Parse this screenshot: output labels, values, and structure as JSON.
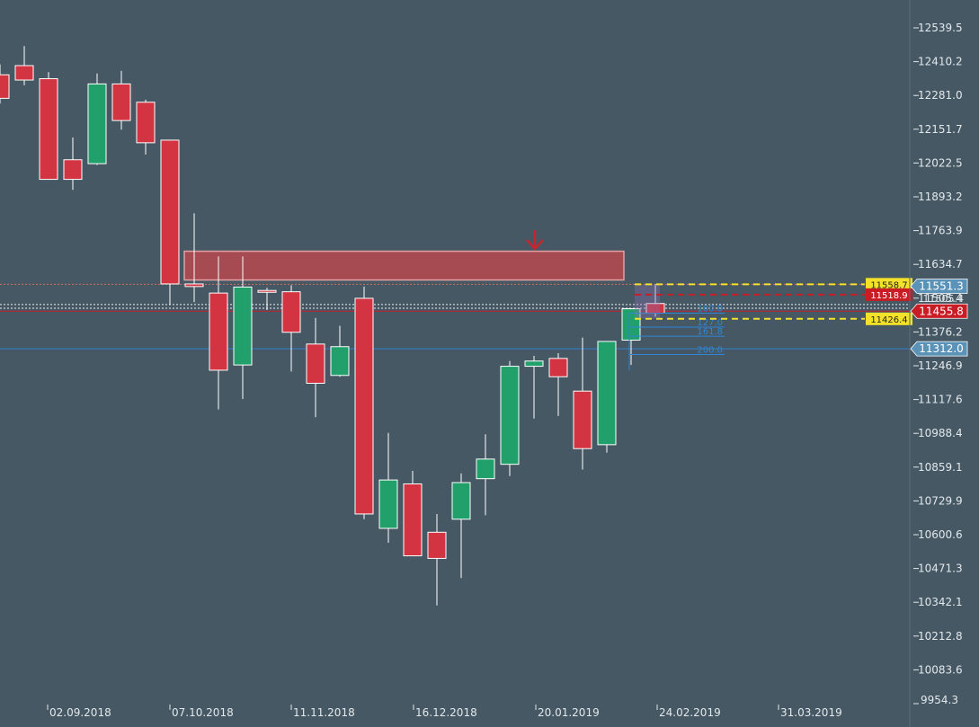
{
  "chart_data": {
    "type": "candlestick",
    "period": "weekly",
    "y_axis": {
      "position": "right",
      "min": 9954.3,
      "max": 12600,
      "tick_labels": [
        "12539.5",
        "12410.2",
        "12281.0",
        "12151.7",
        "12022.5",
        "11893.2",
        "11763.9",
        "11634.7",
        "11505.4",
        "11376.2",
        "11246.9",
        "11117.6",
        "10988.4",
        "10859.1",
        "10729.9",
        "10600.6",
        "10471.3",
        "10342.1",
        "10212.8",
        "10083.6",
        "9954.3"
      ]
    },
    "x_axis": {
      "tick_labels": [
        "02.09.2018",
        "07.10.2018",
        "11.11.2018",
        "16.12.2018",
        "20.01.2019",
        "24.02.2019",
        "31.03.2019"
      ]
    },
    "colors": {
      "background": "#465864",
      "up": "#22a06b",
      "down": "#d23441",
      "wick": "#ffffff",
      "zone_fill": "#b04a4f",
      "zone_border": "#e0a0a4",
      "price_badge": "#c81d25",
      "blue_badge": "#5b93b8",
      "yellow": "#f4e22a",
      "fib": "#2f86d6",
      "axis_text": "#e2e8ec",
      "arrow": "#c5262f"
    },
    "candles": [
      {
        "o": 12360,
        "c": 12270,
        "h": 12400,
        "l": 12250,
        "clip": true
      },
      {
        "o": 12395,
        "c": 12340,
        "h": 12470,
        "l": 12320
      },
      {
        "o": 12345,
        "c": 11960,
        "h": 12370,
        "l": 11960
      },
      {
        "o": 12035,
        "c": 11960,
        "h": 12120,
        "l": 11920
      },
      {
        "o": 12020,
        "c": 12325,
        "h": 12365,
        "l": 12015
      },
      {
        "o": 12325,
        "c": 12185,
        "h": 12375,
        "l": 12150
      },
      {
        "o": 12255,
        "c": 12100,
        "h": 12265,
        "l": 12055
      },
      {
        "o": 12110,
        "c": 11560,
        "h": 12110,
        "l": 11480
      },
      {
        "o": 11560,
        "c": 11550,
        "h": 11830,
        "l": 11490
      },
      {
        "o": 11525,
        "c": 11230,
        "h": 11665,
        "l": 11080
      },
      {
        "o": 11250,
        "c": 11548,
        "h": 11665,
        "l": 11120
      },
      {
        "o": 11535,
        "c": 11528,
        "h": 11545,
        "l": 11460
      },
      {
        "o": 11530,
        "c": 11375,
        "h": 11555,
        "l": 11225
      },
      {
        "o": 11330,
        "c": 11180,
        "h": 11430,
        "l": 11050
      },
      {
        "o": 11210,
        "c": 11320,
        "h": 11400,
        "l": 11205
      },
      {
        "o": 11505,
        "c": 10680,
        "h": 11550,
        "l": 10660
      },
      {
        "o": 10625,
        "c": 10810,
        "h": 10990,
        "l": 10570
      },
      {
        "o": 10795,
        "c": 10520,
        "h": 10845,
        "l": 10520
      },
      {
        "o": 10610,
        "c": 10510,
        "h": 10680,
        "l": 10330
      },
      {
        "o": 10660,
        "c": 10800,
        "h": 10835,
        "l": 10435
      },
      {
        "o": 10815,
        "c": 10890,
        "h": 10985,
        "l": 10675
      },
      {
        "o": 10870,
        "c": 11245,
        "h": 11265,
        "l": 10825
      },
      {
        "o": 11245,
        "c": 11265,
        "h": 11285,
        "l": 11045
      },
      {
        "o": 11275,
        "c": 11205,
        "h": 11295,
        "l": 11055
      },
      {
        "o": 11150,
        "c": 10930,
        "h": 11355,
        "l": 10850
      },
      {
        "o": 10945,
        "c": 11340,
        "h": 11340,
        "l": 10915
      },
      {
        "o": 11345,
        "c": 11465,
        "h": 11465,
        "l": 11250
      },
      {
        "o": 11485,
        "c": 11448,
        "h": 11560,
        "l": 11435
      }
    ],
    "resistance_zone": {
      "from_candle": 8,
      "to_candle": 26,
      "top": 11685,
      "bottom": 11575
    },
    "signal_arrow": {
      "candle": 22,
      "price": 11725,
      "direction": "down"
    },
    "horizontal_lines": [
      {
        "price": 11558.7,
        "style": "dotted",
        "color": "#e07060",
        "full": true
      },
      {
        "price": 11481,
        "style": "dotted",
        "color": "#ffffff",
        "full": true
      },
      {
        "price": 11467,
        "style": "dotted",
        "color": "#ffffff",
        "full": true
      },
      {
        "price": 11455.8,
        "style": "solid",
        "color": "#c81d25",
        "full": true
      },
      {
        "price": 11312.0,
        "style": "solid",
        "color": "#2f86d6",
        "full": true
      }
    ],
    "trade_levels": [
      {
        "price": 11558.7,
        "label": "11558.7",
        "style": "dashed",
        "color": "#f4e22a"
      },
      {
        "price": 11518.9,
        "label": "11518.9",
        "style": "dashed",
        "color": "#c81d25"
      },
      {
        "price": 11426.4,
        "label": "11426.4",
        "style": "dashed",
        "color": "#f4e22a"
      }
    ],
    "fib_levels": [
      {
        "price": 11448,
        "label": "100.0"
      },
      {
        "price": 11395,
        "label": "127.0"
      },
      {
        "price": 11360,
        "label": "161.8"
      },
      {
        "price": 11290,
        "label": "200.0"
      }
    ],
    "price_badges": [
      {
        "price": 11551.3,
        "label": "11551.3",
        "kind": "blue"
      },
      {
        "price": 11455.8,
        "label": "11455.8",
        "kind": "red"
      },
      {
        "price": 11312.0,
        "label": "11312.0",
        "kind": "blue"
      }
    ],
    "partial_label": "11505.4"
  }
}
